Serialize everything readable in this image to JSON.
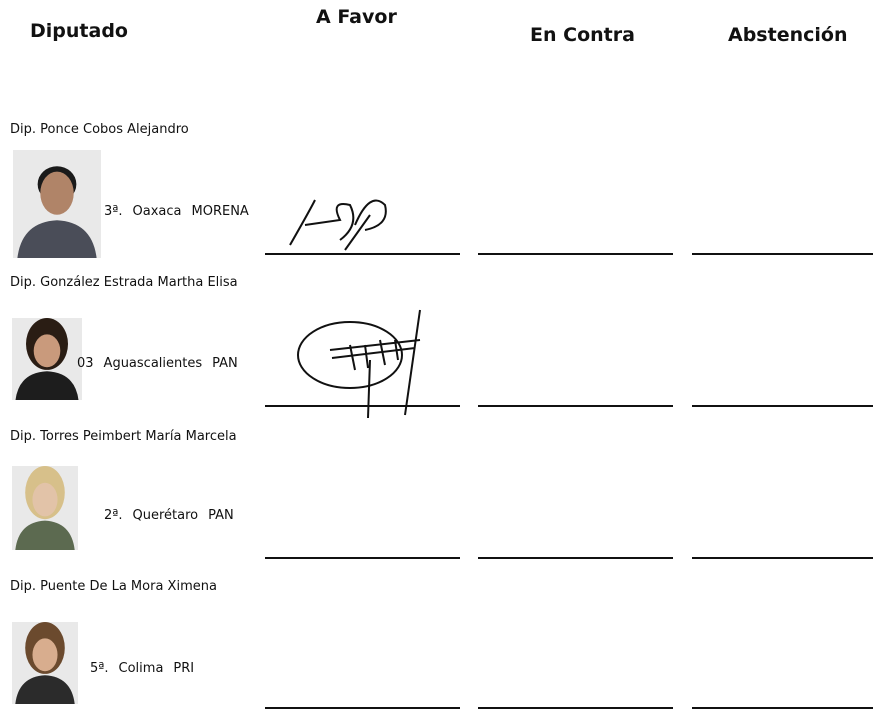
{
  "header": {
    "diputado": "Diputado",
    "a_favor": "A Favor",
    "en_contra": "En Contra",
    "abstencion": "Abstención"
  },
  "rows": [
    {
      "name": "Dip. Ponce Cobos Alejandro",
      "district": "3ª.",
      "state": "Oaxaca",
      "party": "MORENA"
    },
    {
      "name": "Dip. González Estrada Martha Elisa",
      "district": "03",
      "state": "Aguascalientes",
      "party": "PAN"
    },
    {
      "name": "Dip. Torres Peimbert María Marcela",
      "district": "2ª.",
      "state": "Querétaro",
      "party": "PAN"
    },
    {
      "name": "Dip. Puente De La Mora Ximena",
      "district": "5ª.",
      "state": "Colima",
      "party": "PRI"
    }
  ]
}
